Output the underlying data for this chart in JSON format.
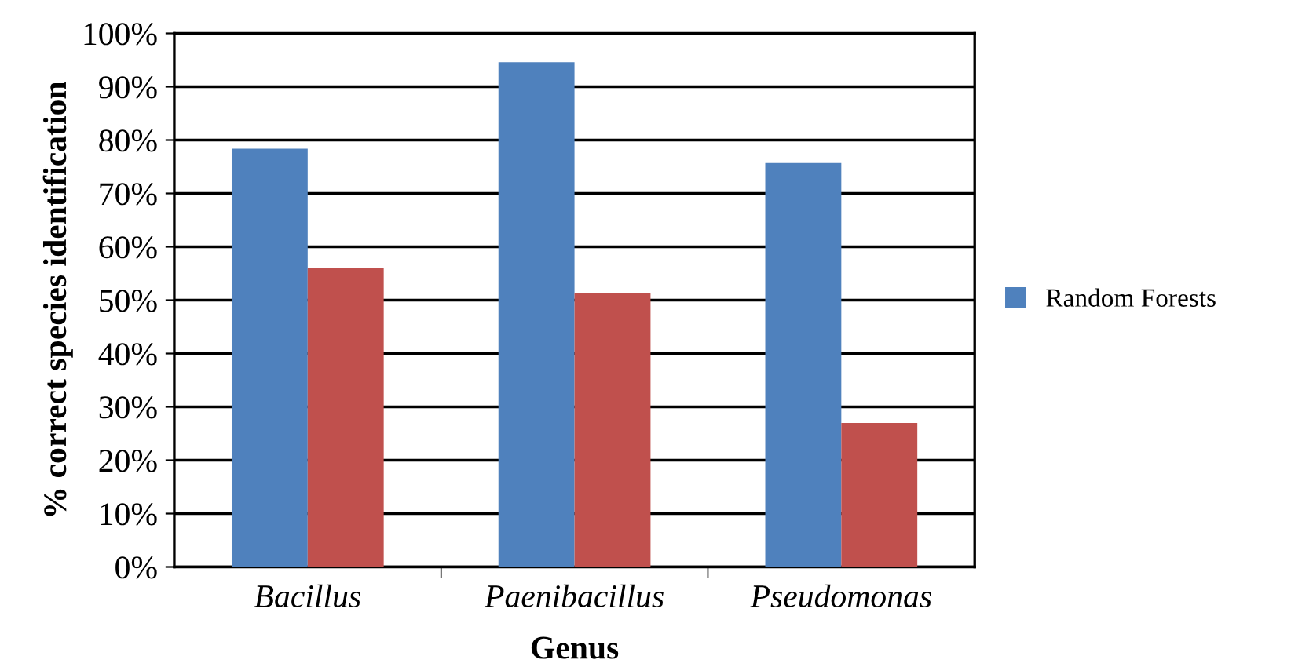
{
  "chart_data": {
    "type": "bar",
    "xlabel": "Genus",
    "ylabel": "% correct species identification",
    "categories": [
      "Bacillus",
      "Paenibacillus",
      "Pseudomonas"
    ],
    "series": [
      {
        "name": "Random Forests",
        "color": "#4f81bd",
        "values": [
          78.4,
          94.6,
          75.7
        ]
      },
      {
        "color": "#c0504d",
        "values": [
          56.1,
          51.3,
          27.0
        ]
      }
    ],
    "ylim": [
      0,
      100
    ],
    "yticks": [
      {
        "value": 0,
        "label": "0%"
      },
      {
        "value": 10,
        "label": "10%"
      },
      {
        "value": 20,
        "label": "20%"
      },
      {
        "value": 30,
        "label": "30%"
      },
      {
        "value": 40,
        "label": "40%"
      },
      {
        "value": 50,
        "label": "50%"
      },
      {
        "value": 60,
        "label": "60%"
      },
      {
        "value": 70,
        "label": "70%"
      },
      {
        "value": 80,
        "label": "80%"
      },
      {
        "value": 90,
        "label": "90%"
      },
      {
        "value": 100,
        "label": "100%"
      }
    ],
    "grid": "y",
    "legend": "right"
  }
}
